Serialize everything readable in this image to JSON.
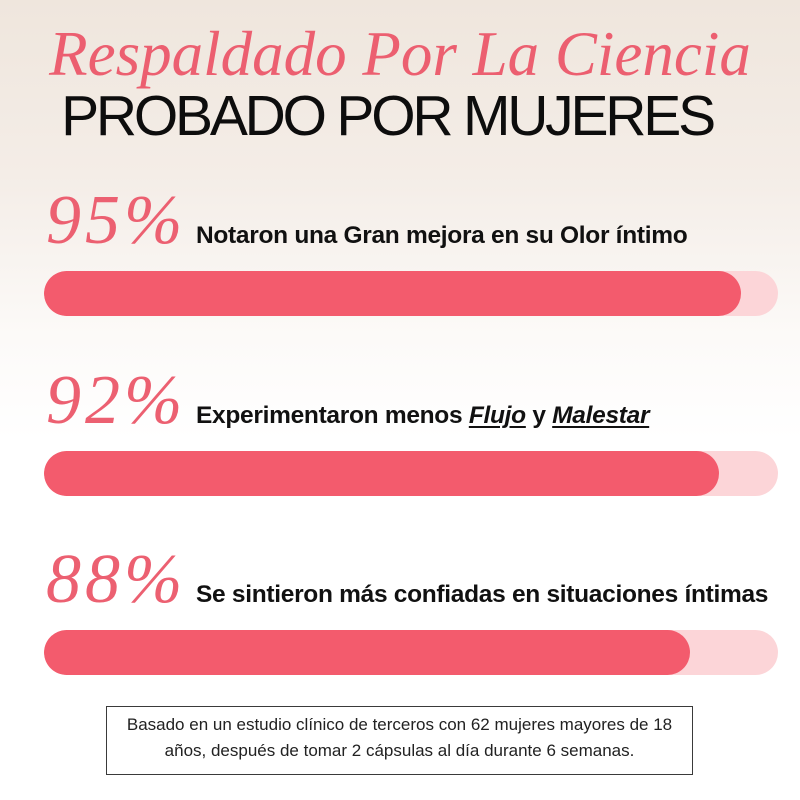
{
  "header": {
    "script_title": "Respaldado Por La Ciencia",
    "main_title": "PROBADO POR MUJERES"
  },
  "chart_data": {
    "type": "bar",
    "orientation": "horizontal",
    "categories": [
      "Notaron una Gran mejora en su Olor íntimo",
      "Experimentaron menos Flujo y Malestar",
      "Se sintieron más confiadas en situaciones íntimas"
    ],
    "category_emphasis": [
      [],
      [
        "Flujo",
        "Malestar"
      ],
      []
    ],
    "values": [
      95,
      92,
      88
    ],
    "value_labels": [
      "95%",
      "92%",
      "88%"
    ],
    "xlim": [
      0,
      100
    ],
    "grid": false
  },
  "footnote": {
    "lines": [
      "Basado en un estudio clínico de terceros con 62 mujeres mayores de 18",
      "años, después de tomar 2 cápsulas al día durante 6 semanas."
    ]
  },
  "colors": {
    "title_text": "#ec5f70",
    "percent_text": "#ec6071",
    "bar_fill": "#f35b6d",
    "bar_track": "#fcd5d8",
    "text": "#111111",
    "background_top": "#efe6dd"
  }
}
